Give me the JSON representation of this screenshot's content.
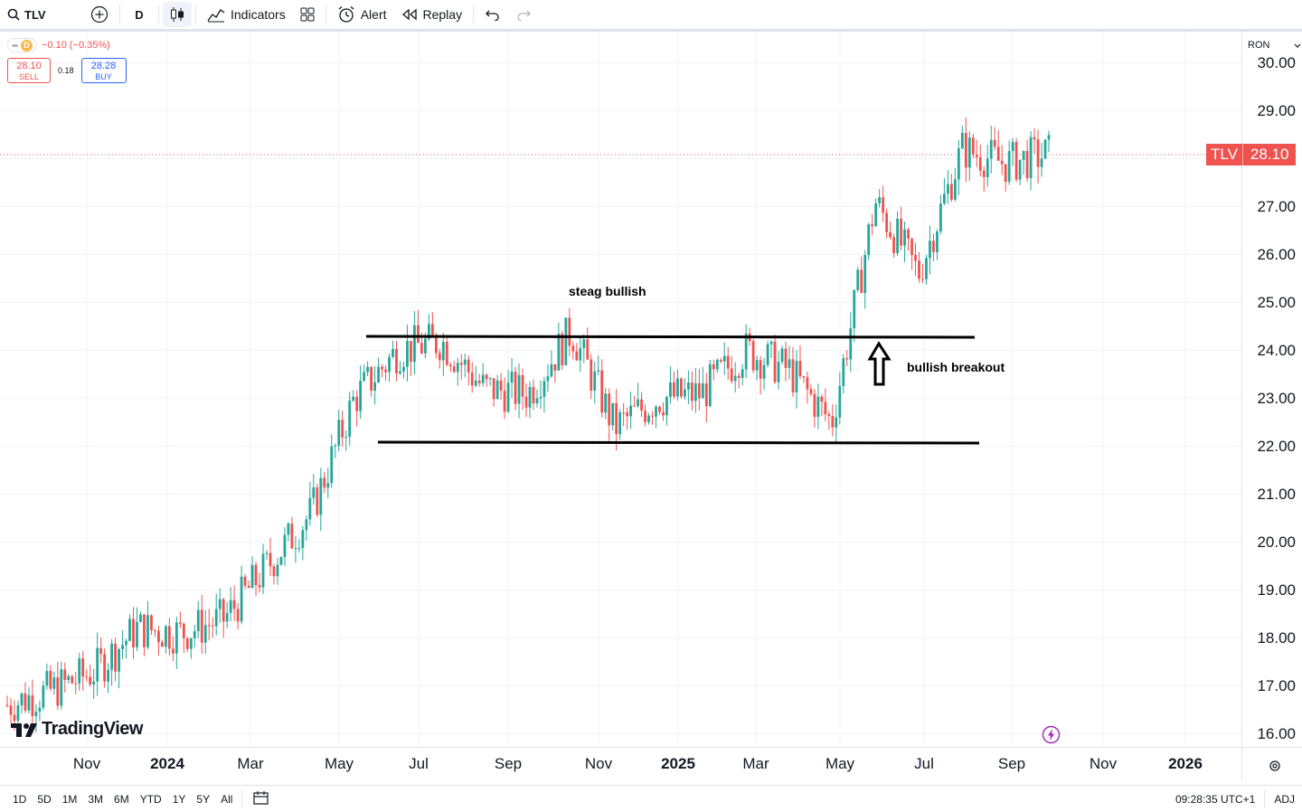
{
  "toolbar": {
    "symbol": "TLV",
    "interval": "D",
    "indicators_label": "Indicators",
    "alert_label": "Alert",
    "replay_label": "Replay"
  },
  "legend": {
    "interval_badge": "D",
    "change": "−0.10 (−0.35%)",
    "sell_price": "28.10",
    "sell_label": "SELL",
    "spread": "0.18",
    "buy_price": "28.28",
    "buy_label": "BUY"
  },
  "price_axis": {
    "currency": "RON",
    "ticks": [
      "30.00",
      "29.00",
      "28.00",
      "27.00",
      "26.00",
      "25.00",
      "24.00",
      "23.00",
      "22.00",
      "21.00",
      "20.00",
      "19.00",
      "18.00",
      "17.00",
      "16.00"
    ],
    "last_symbol": "TLV",
    "last_price": "28.10"
  },
  "time_axis": {
    "ticks": [
      {
        "label": "Nov",
        "bold": false
      },
      {
        "label": "2024",
        "bold": true
      },
      {
        "label": "Mar",
        "bold": false
      },
      {
        "label": "May",
        "bold": false
      },
      {
        "label": "Jul",
        "bold": false
      },
      {
        "label": "Sep",
        "bold": false
      },
      {
        "label": "Nov",
        "bold": false
      },
      {
        "label": "2025",
        "bold": true
      },
      {
        "label": "Mar",
        "bold": false
      },
      {
        "label": "May",
        "bold": false
      },
      {
        "label": "Jul",
        "bold": false
      },
      {
        "label": "Sep",
        "bold": false
      },
      {
        "label": "Nov",
        "bold": false
      },
      {
        "label": "2026",
        "bold": true
      }
    ]
  },
  "annotations": {
    "steag": "steag bullish",
    "breakout": "bullish breakout"
  },
  "branding": "TradingView",
  "bottom": {
    "ranges": [
      "1D",
      "5D",
      "1M",
      "3M",
      "6M",
      "YTD",
      "1Y",
      "5Y",
      "All"
    ],
    "clock": "09:28:35 UTC+1",
    "adj": "ADJ"
  },
  "colors": {
    "up": "#26a69a",
    "down": "#ef5350",
    "accent": "#2962ff",
    "grid": "#f0f3fa"
  },
  "chart_data": {
    "type": "candlestick",
    "symbol": "TLV",
    "ylim": [
      15.8,
      30.2
    ],
    "x": [
      "2023-10",
      "2023-11",
      "2023-12",
      "2024-01",
      "2024-02",
      "2024-03",
      "2024-04",
      "2024-05",
      "2024-06",
      "2024-07",
      "2024-08",
      "2024-09",
      "2024-10",
      "2024-11",
      "2024-12",
      "2025-01",
      "2025-02",
      "2025-03",
      "2025-04",
      "2025-05",
      "2025-06",
      "2025-07",
      "2025-08",
      "2025-09",
      "2025-10"
    ],
    "close": [
      16.6,
      16.9,
      17.3,
      18.2,
      18.1,
      18.4,
      19.5,
      20.6,
      23.0,
      24.0,
      24.2,
      23.2,
      23.1,
      24.4,
      22.4,
      23.0,
      23.1,
      24.0,
      23.6,
      22.5,
      27.1,
      25.6,
      28.2,
      27.9,
      28.1
    ],
    "levels": [
      24.3,
      22.1
    ]
  }
}
